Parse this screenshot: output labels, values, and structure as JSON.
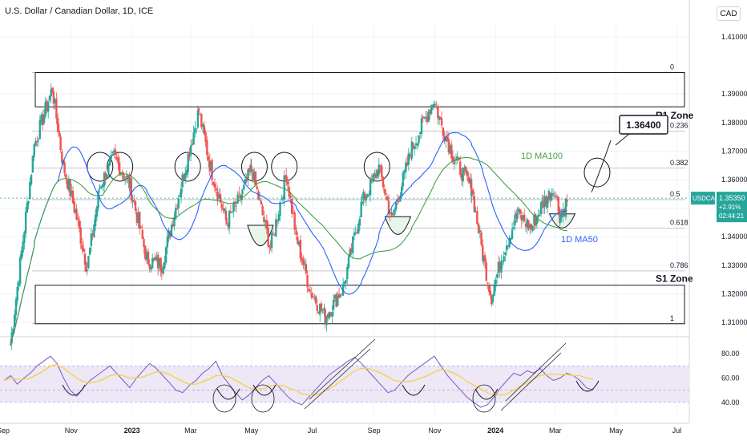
{
  "header": {
    "title": "U.S. Dollar / Canadian Dollar, 1D, ICE",
    "currency_button": "CAD"
  },
  "colors": {
    "up": "#26a69a",
    "down": "#ef5350",
    "ma50": "#2962ff",
    "ma100": "#43a047",
    "rsi_line": "#7e57c2",
    "rsi_ma": "#f5d142",
    "rsi_band": "#ede7f6",
    "price_tag": "#26a69a"
  },
  "chart_data": [
    {
      "type": "candlestick",
      "title": "U.S. Dollar / Canadian Dollar, 1D, ICE",
      "ylim": [
        1.3055,
        1.4145
      ],
      "y_ticks": [
        "1.41000",
        "1.39000",
        "1.38000",
        "1.37000",
        "1.36000",
        "1.35000",
        "1.34000",
        "1.33000",
        "1.32000",
        "1.31000"
      ],
      "x_ticks": [
        "Sep",
        "Nov",
        "2023",
        "Mar",
        "May",
        "Jul",
        "Sep",
        "Nov",
        "2024",
        "Mar",
        "May",
        "Jul"
      ],
      "price_path": [
        {
          "date": "2022-09-01",
          "close": 1.302
        },
        {
          "date": "2022-09-25",
          "close": 1.372
        },
        {
          "date": "2022-10-13",
          "close": 1.392
        },
        {
          "date": "2022-10-24",
          "close": 1.365
        },
        {
          "date": "2022-11-05",
          "close": 1.349
        },
        {
          "date": "2022-11-17",
          "close": 1.329
        },
        {
          "date": "2022-11-30",
          "close": 1.358
        },
        {
          "date": "2022-12-14",
          "close": 1.368
        },
        {
          "date": "2022-12-30",
          "close": 1.358
        },
        {
          "date": "2023-01-16",
          "close": 1.332
        },
        {
          "date": "2023-01-31",
          "close": 1.33
        },
        {
          "date": "2023-02-18",
          "close": 1.356
        },
        {
          "date": "2023-03-09",
          "close": 1.384
        },
        {
          "date": "2023-03-21",
          "close": 1.364
        },
        {
          "date": "2023-04-06",
          "close": 1.345
        },
        {
          "date": "2023-04-22",
          "close": 1.355
        },
        {
          "date": "2023-05-01",
          "close": 1.364
        },
        {
          "date": "2023-05-20",
          "close": 1.336
        },
        {
          "date": "2023-06-05",
          "close": 1.362
        },
        {
          "date": "2023-06-15",
          "close": 1.34
        },
        {
          "date": "2023-06-29",
          "close": 1.321
        },
        {
          "date": "2023-07-14",
          "close": 1.312
        },
        {
          "date": "2023-08-01",
          "close": 1.322
        },
        {
          "date": "2023-08-20",
          "close": 1.352
        },
        {
          "date": "2023-09-06",
          "close": 1.364
        },
        {
          "date": "2023-09-19",
          "close": 1.346
        },
        {
          "date": "2023-10-09",
          "close": 1.371
        },
        {
          "date": "2023-10-31",
          "close": 1.388
        },
        {
          "date": "2023-11-08",
          "close": 1.379
        },
        {
          "date": "2023-11-21",
          "close": 1.367
        },
        {
          "date": "2023-12-08",
          "close": 1.357
        },
        {
          "date": "2023-12-20",
          "close": 1.332
        },
        {
          "date": "2023-12-28",
          "close": 1.319
        },
        {
          "date": "2024-01-08",
          "close": 1.334
        },
        {
          "date": "2024-01-23",
          "close": 1.348
        },
        {
          "date": "2024-02-06",
          "close": 1.343
        },
        {
          "date": "2024-02-18",
          "close": 1.352
        },
        {
          "date": "2024-02-29",
          "close": 1.357
        },
        {
          "date": "2024-03-06",
          "close": 1.347
        },
        {
          "date": "2024-03-14",
          "close": 1.3535
        }
      ],
      "fib_levels": [
        {
          "label": "0",
          "price": 1.3975
        },
        {
          "label": "0.236",
          "price": 1.377
        },
        {
          "label": "0.382",
          "price": 1.364
        },
        {
          "label": "0.5",
          "price": 1.353
        },
        {
          "label": "0.618",
          "price": 1.343
        },
        {
          "label": "0.786",
          "price": 1.328
        },
        {
          "label": "1",
          "price": 1.3095
        }
      ],
      "zones": [
        {
          "label": "R1 Zone",
          "top": 1.3975,
          "bottom": 1.3855
        },
        {
          "label": "S1 Zone",
          "top": 1.323,
          "bottom": 1.3095
        }
      ],
      "target": {
        "label": "1.36400",
        "price": 1.364
      },
      "ma_labels": {
        "ma100": "1D MA100",
        "ma50": "1D MA50"
      },
      "current_price": {
        "value": "1.35350",
        "change": "+2.91%",
        "countdown": "02:44:21",
        "symbol": "USDCAD"
      }
    },
    {
      "type": "line",
      "title": "",
      "ylim": [
        28,
        92
      ],
      "y_ticks": [
        "80.00",
        "60.00",
        "40.00"
      ],
      "band": [
        40,
        70
      ],
      "series": [
        {
          "values": [
            58,
            62,
            55,
            60,
            64,
            70,
            74,
            78,
            72,
            60,
            50,
            45,
            52,
            58,
            62,
            66,
            70,
            64,
            58,
            52,
            60,
            66,
            72,
            68,
            62,
            56,
            50,
            48,
            54,
            58,
            64,
            68,
            74,
            62,
            55,
            48,
            42,
            46,
            52,
            58,
            62,
            56,
            50,
            44,
            40,
            38,
            44,
            50,
            56,
            62,
            66,
            70,
            74,
            77,
            72,
            66,
            60,
            54,
            48,
            50,
            56,
            62,
            66,
            70,
            74,
            78,
            70,
            62,
            56,
            50,
            44,
            40,
            36,
            38,
            44,
            52,
            58,
            64,
            62,
            66,
            64,
            68,
            62,
            58,
            60,
            64,
            62,
            58,
            52,
            50
          ]
        },
        {
          "values": [
            58,
            60,
            59,
            59,
            60,
            63,
            66,
            70,
            71,
            68,
            64,
            60,
            57,
            56,
            57,
            59,
            62,
            63,
            62,
            60,
            60,
            61,
            63,
            65,
            65,
            63,
            60,
            57,
            55,
            55,
            57,
            59,
            62,
            62,
            61,
            58,
            55,
            52,
            51,
            51,
            53,
            54,
            54,
            52,
            50,
            47,
            46,
            46,
            48,
            51,
            54,
            58,
            62,
            66,
            68,
            68,
            66,
            64,
            61,
            58,
            57,
            57,
            58,
            60,
            62,
            65,
            67,
            66,
            64,
            61,
            57,
            54,
            51,
            48,
            46,
            46,
            47,
            50,
            53,
            56,
            59,
            62,
            63,
            63,
            63,
            63,
            62,
            62,
            60,
            59
          ]
        }
      ]
    }
  ]
}
